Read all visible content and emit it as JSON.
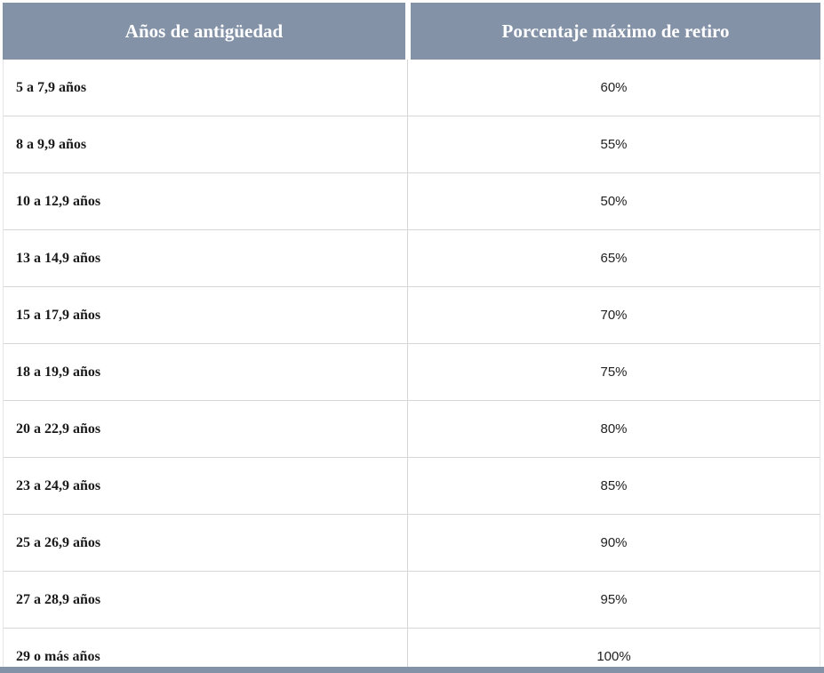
{
  "colors": {
    "header_bg": "#8492a8",
    "row_border": "#d6d6d6",
    "bottom_bar": "#8492a8",
    "header_text": "#ffffff",
    "label_text": "#1a1a1a"
  },
  "table": {
    "headers": {
      "years": "Años de antigüedad",
      "pct": "Porcentaje máximo de retiro"
    },
    "rows": [
      {
        "label": "5 a 7,9 años",
        "value": "60%"
      },
      {
        "label": "8 a 9,9 años",
        "value": "55%"
      },
      {
        "label": "10 a 12,9 años",
        "value": "50%"
      },
      {
        "label": "13 a 14,9 años",
        "value": "65%"
      },
      {
        "label": "15 a 17,9 años",
        "value": "70%"
      },
      {
        "label": "18 a 19,9 años",
        "value": "75%"
      },
      {
        "label": "20 a 22,9 años",
        "value": "80%"
      },
      {
        "label": "23 a 24,9 años",
        "value": "85%"
      },
      {
        "label": "25 a 26,9 años",
        "value": "90%"
      },
      {
        "label": "27 a 28,9 años",
        "value": "95%"
      },
      {
        "label": "29 o más años",
        "value": "100%"
      }
    ]
  },
  "chart_data": {
    "type": "table",
    "title": "",
    "columns": [
      "Años de antigüedad",
      "Porcentaje máximo de retiro"
    ],
    "rows": [
      [
        "5 a 7,9 años",
        "60%"
      ],
      [
        "8 a 9,9 años",
        "55%"
      ],
      [
        "10 a 12,9 años",
        "50%"
      ],
      [
        "13 a 14,9 años",
        "65%"
      ],
      [
        "15 a 17,9 años",
        "70%"
      ],
      [
        "18 a 19,9 años",
        "75%"
      ],
      [
        "20 a 22,9 años",
        "80%"
      ],
      [
        "23 a 24,9 años",
        "85%"
      ],
      [
        "25 a 26,9 años",
        "90%"
      ],
      [
        "27 a 28,9 años",
        "95%"
      ],
      [
        "29 o más años",
        "100%"
      ]
    ]
  }
}
